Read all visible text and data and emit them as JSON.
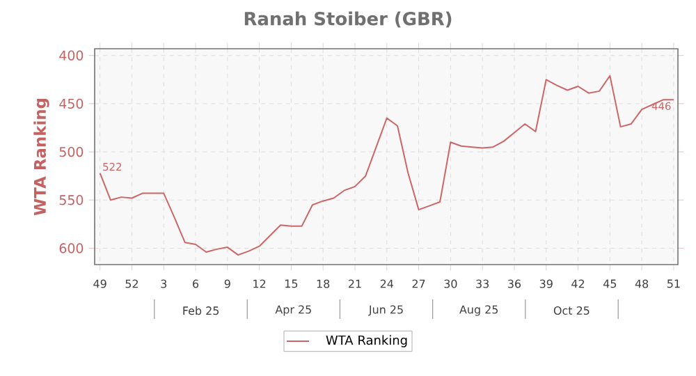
{
  "chart_data": {
    "type": "line",
    "title": "Ranah Stoiber (GBR)",
    "ylabel": "WTA Ranking",
    "categories": [
      "49",
      null,
      null,
      "52",
      null,
      null,
      "3",
      null,
      null,
      "6",
      null,
      null,
      "9",
      null,
      null,
      "12",
      null,
      null,
      "15",
      null,
      null,
      "18",
      null,
      null,
      "21",
      null,
      null,
      "24",
      null,
      null,
      "27",
      null,
      null,
      "30",
      null,
      null,
      "33",
      null,
      null,
      "36",
      null,
      null,
      "39",
      null,
      null,
      "42",
      null,
      null,
      "45",
      null,
      null,
      "48",
      null,
      null,
      "51"
    ],
    "series": [
      {
        "name": "WTA Ranking",
        "color": "#cc6666",
        "values": [
          522,
          550,
          547,
          548,
          543,
          543,
          543,
          568,
          594,
          596,
          604,
          601,
          599,
          607,
          603,
          598,
          587,
          576,
          577,
          577,
          555,
          551,
          548,
          540,
          536,
          525,
          495,
          465,
          473,
          522,
          560,
          556,
          552,
          490,
          494,
          495,
          496,
          495,
          489,
          480,
          471,
          479,
          425,
          431,
          436,
          432,
          439,
          437,
          421,
          474,
          471,
          456,
          451,
          446,
          446
        ],
        "value_labels": [
          "522",
          null,
          null,
          null,
          null,
          null,
          null,
          null,
          null,
          null,
          null,
          null,
          null,
          null,
          null,
          null,
          null,
          null,
          null,
          null,
          null,
          null,
          null,
          null,
          null,
          null,
          null,
          null,
          null,
          null,
          null,
          null,
          null,
          null,
          null,
          null,
          null,
          null,
          null,
          null,
          null,
          null,
          null,
          null,
          null,
          null,
          null,
          null,
          null,
          null,
          null,
          null,
          null,
          null,
          "446"
        ]
      }
    ],
    "annotations": [
      "Feb 25",
      "Apr 25",
      "Jun 25",
      "Aug 25",
      "Oct 25"
    ],
    "ylim": [
      617,
      393
    ],
    "yticks": [
      400,
      450,
      500,
      550,
      600
    ],
    "grid": true,
    "legend": "bottom",
    "marker": "none",
    "line_style": "solid"
  }
}
